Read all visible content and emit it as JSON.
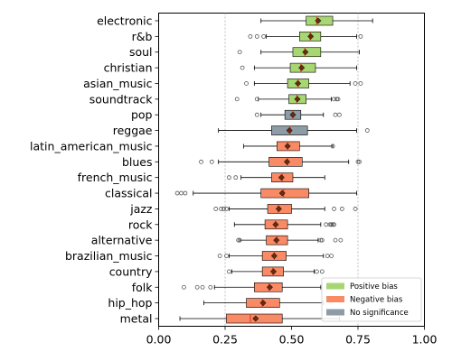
{
  "chart_data": {
    "type": "boxplot",
    "orientation": "horizontal",
    "xlim": [
      0.0,
      1.0
    ],
    "x_ticks": [
      0.0,
      0.25,
      0.5,
      0.75,
      1.0
    ],
    "x_tick_labels": [
      "0.00",
      "0.25",
      "0.50",
      "0.75",
      "1.00"
    ],
    "reference_lines": [
      0.25,
      0.75
    ],
    "legend": {
      "placement": "lower-right",
      "entries": [
        {
          "label": "Positive bias",
          "color": "#a8d672"
        },
        {
          "label": "Negative bias",
          "color": "#f98a66"
        },
        {
          "label": "No significance",
          "color": "#8d9ca5"
        }
      ]
    },
    "colors": {
      "positive": "#a8d672",
      "negative": "#f98a66",
      "none": "#8d9ca5",
      "mean_marker": "#6b2a0f",
      "median_line": "#d2452b"
    },
    "categories": [
      {
        "name": "electronic",
        "bias": "positive",
        "whislo": 0.385,
        "q1": 0.555,
        "med": 0.595,
        "q3": 0.655,
        "whishi": 0.805,
        "mean": 0.6,
        "fliers": []
      },
      {
        "name": "r&b",
        "bias": "positive",
        "whislo": 0.405,
        "q1": 0.53,
        "med": 0.57,
        "q3": 0.61,
        "whishi": 0.745,
        "mean": 0.572,
        "fliers": [
          0.345,
          0.37,
          0.395,
          0.76
        ]
      },
      {
        "name": "soul",
        "bias": "positive",
        "whislo": 0.385,
        "q1": 0.505,
        "med": 0.55,
        "q3": 0.61,
        "whishi": 0.755,
        "mean": 0.552,
        "fliers": [
          0.305
        ]
      },
      {
        "name": "christian",
        "bias": "positive",
        "whislo": 0.36,
        "q1": 0.495,
        "med": 0.535,
        "q3": 0.59,
        "whishi": 0.745,
        "mean": 0.538,
        "fliers": [
          0.315
        ]
      },
      {
        "name": "asian_music",
        "bias": "positive",
        "whislo": 0.36,
        "q1": 0.485,
        "med": 0.525,
        "q3": 0.565,
        "whishi": 0.72,
        "mean": 0.524,
        "fliers": [
          0.33,
          0.74,
          0.76
        ]
      },
      {
        "name": "soundtrack",
        "bias": "positive",
        "whislo": 0.375,
        "q1": 0.49,
        "med": 0.52,
        "q3": 0.555,
        "whishi": 0.65,
        "mean": 0.522,
        "fliers": [
          0.295,
          0.37,
          0.66,
          0.67,
          0.675
        ]
      },
      {
        "name": "pop",
        "bias": "none",
        "whislo": 0.385,
        "q1": 0.475,
        "med": 0.505,
        "q3": 0.535,
        "whishi": 0.62,
        "mean": 0.505,
        "fliers": [
          0.37,
          0.665,
          0.68
        ]
      },
      {
        "name": "reggae",
        "bias": "none",
        "whislo": 0.225,
        "q1": 0.425,
        "med": 0.495,
        "q3": 0.56,
        "whishi": 0.745,
        "mean": 0.492,
        "fliers": [
          0.785
        ]
      },
      {
        "name": "latin_american_music",
        "bias": "negative",
        "whislo": 0.32,
        "q1": 0.445,
        "med": 0.485,
        "q3": 0.53,
        "whishi": 0.655,
        "mean": 0.485,
        "fliers": [
          0.655
        ]
      },
      {
        "name": "blues",
        "bias": "negative",
        "whislo": 0.225,
        "q1": 0.415,
        "med": 0.485,
        "q3": 0.54,
        "whishi": 0.715,
        "mean": 0.483,
        "fliers": [
          0.16,
          0.2,
          0.75,
          0.755
        ]
      },
      {
        "name": "french_music",
        "bias": "negative",
        "whislo": 0.31,
        "q1": 0.425,
        "med": 0.465,
        "q3": 0.505,
        "whishi": 0.625,
        "mean": 0.462,
        "fliers": [
          0.265,
          0.29
        ]
      },
      {
        "name": "classical",
        "bias": "negative",
        "whislo": 0.13,
        "q1": 0.385,
        "med": 0.47,
        "q3": 0.565,
        "whishi": 0.745,
        "mean": 0.465,
        "fliers": [
          0.07,
          0.085,
          0.1
        ]
      },
      {
        "name": "jazz",
        "bias": "negative",
        "whislo": 0.265,
        "q1": 0.41,
        "med": 0.45,
        "q3": 0.5,
        "whishi": 0.625,
        "mean": 0.452,
        "fliers": [
          0.215,
          0.235,
          0.245,
          0.255,
          0.66,
          0.69,
          0.74
        ]
      },
      {
        "name": "rock",
        "bias": "negative",
        "whislo": 0.285,
        "q1": 0.4,
        "med": 0.44,
        "q3": 0.485,
        "whishi": 0.61,
        "mean": 0.44,
        "fliers": [
          0.63,
          0.645,
          0.65,
          0.655,
          0.66
        ]
      },
      {
        "name": "alternative",
        "bias": "negative",
        "whislo": 0.305,
        "q1": 0.405,
        "med": 0.445,
        "q3": 0.485,
        "whishi": 0.6,
        "mean": 0.443,
        "fliers": [
          0.3,
          0.305,
          0.61,
          0.615,
          0.665,
          0.685
        ]
      },
      {
        "name": "brazilian_music",
        "bias": "negative",
        "whislo": 0.265,
        "q1": 0.39,
        "med": 0.435,
        "q3": 0.48,
        "whishi": 0.62,
        "mean": 0.435,
        "fliers": [
          0.23,
          0.255,
          0.635,
          0.65
        ]
      },
      {
        "name": "country",
        "bias": "negative",
        "whislo": 0.275,
        "q1": 0.39,
        "med": 0.43,
        "q3": 0.47,
        "whishi": 0.585,
        "mean": 0.432,
        "fliers": [
          0.265,
          0.595,
          0.615
        ]
      },
      {
        "name": "folk",
        "bias": "negative",
        "whislo": 0.21,
        "q1": 0.36,
        "med": 0.415,
        "q3": 0.465,
        "whishi": 0.61,
        "mean": 0.418,
        "fliers": [
          0.095,
          0.145,
          0.165,
          0.195
        ]
      },
      {
        "name": "hip_hop",
        "bias": "negative",
        "whislo": 0.17,
        "q1": 0.33,
        "med": 0.39,
        "q3": 0.455,
        "whishi": 0.62,
        "mean": 0.393,
        "fliers": []
      },
      {
        "name": "metal",
        "bias": "negative",
        "whislo": 0.08,
        "q1": 0.255,
        "med": 0.345,
        "q3": 0.465,
        "whishi": 0.68,
        "mean": 0.365,
        "fliers": []
      }
    ]
  }
}
